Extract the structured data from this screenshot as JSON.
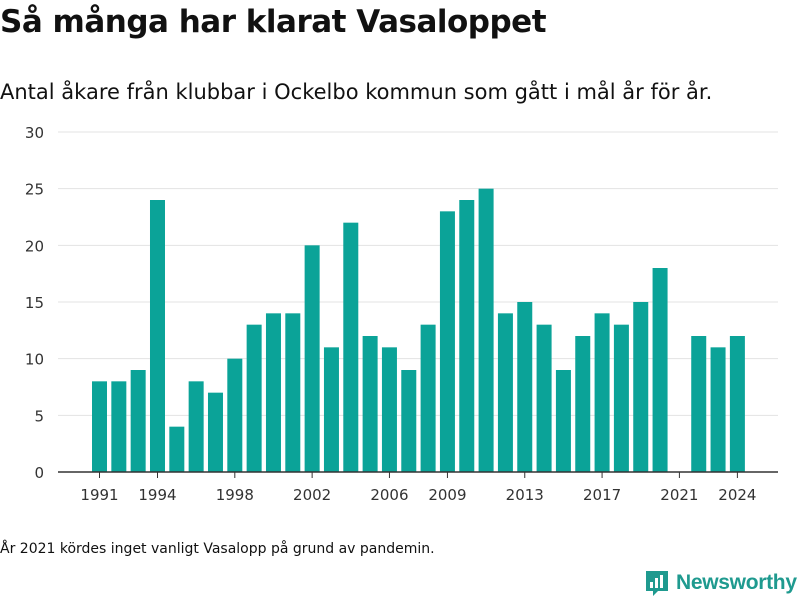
{
  "title": "Så många har klarat Vasaloppet",
  "subtitle": "Antal åkare från klubbar i Ockelbo kommun som gått i mål år för år.",
  "footnote": "År 2021 kördes inget vanligt Vasalopp på grund av pandemin.",
  "brand": {
    "name": "Newsworthy",
    "icon": "newsworthy-logo-icon",
    "color": "#1f9a8f"
  },
  "colors": {
    "bar": "#0ba398",
    "grid": "#e3e3e3",
    "axis": "#333333"
  },
  "chart_data": {
    "type": "bar",
    "title": "Så många har klarat Vasaloppet",
    "xlabel": "",
    "ylabel": "",
    "categories": [
      1991,
      1992,
      1993,
      1994,
      1995,
      1996,
      1997,
      1998,
      1999,
      2000,
      2001,
      2002,
      2003,
      2004,
      2005,
      2006,
      2007,
      2008,
      2009,
      2010,
      2011,
      2012,
      2013,
      2014,
      2015,
      2016,
      2017,
      2018,
      2019,
      2020,
      2021,
      2022,
      2023,
      2024
    ],
    "values": [
      8,
      8,
      9,
      24,
      4,
      8,
      7,
      10,
      13,
      14,
      14,
      20,
      11,
      22,
      12,
      11,
      9,
      13,
      23,
      24,
      25,
      14,
      15,
      13,
      9,
      12,
      14,
      13,
      15,
      18,
      null,
      12,
      11,
      12
    ],
    "x_ticks": [
      1991,
      1994,
      1998,
      2002,
      2006,
      2009,
      2013,
      2017,
      2021,
      2024
    ],
    "y_ticks": [
      0,
      5,
      10,
      15,
      20,
      25,
      30
    ],
    "ylim": [
      0,
      30
    ],
    "grid": true,
    "legend": "none"
  }
}
